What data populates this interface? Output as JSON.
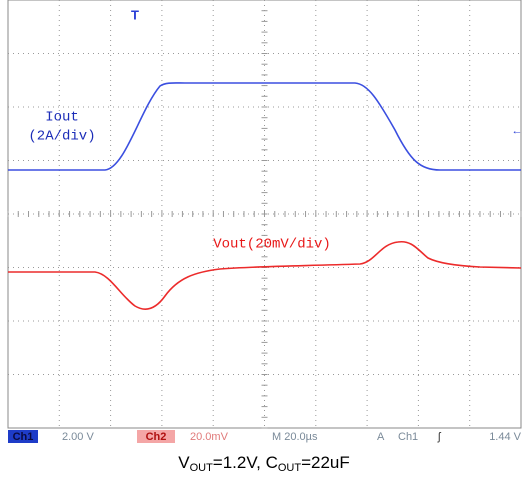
{
  "traces": {
    "ch1_label": [
      "Iout",
      "(2A/div)"
    ],
    "ch2_label": "Vout(20mV/div)"
  },
  "status_bar": {
    "ch1": "Ch1",
    "ch1_scale": "2.00 V",
    "ch2": "Ch2",
    "ch2_scale": "20.0mV",
    "timebase": "M 20.0µs",
    "trigger_mode": "A",
    "trigger_source": "Ch1",
    "trigger_level": "1.44 V"
  },
  "caption": [
    "V",
    "OUT",
    "=1.2V, C",
    "OUT",
    "=22uF"
  ]
}
